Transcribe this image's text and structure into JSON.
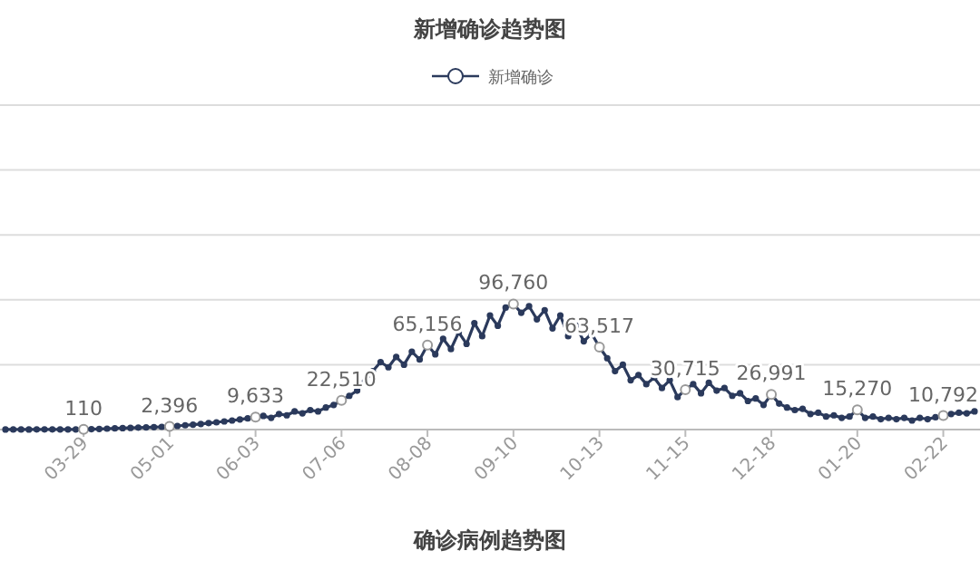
{
  "chart_data": {
    "type": "line",
    "title": "新增确诊趋势图",
    "legend": "top",
    "grid": "y",
    "tick_labels": "x",
    "marker": "circle",
    "line_style": "solid",
    "ylim": [
      0,
      250000
    ],
    "yticks": [
      {
        "value": 0,
        "label": null
      },
      {
        "value": 50000,
        "label": null
      },
      {
        "value": 100000,
        "label": null
      },
      {
        "value": 150000,
        "label": null
      },
      {
        "value": 200000,
        "label": null
      },
      {
        "value": 250000,
        "label": null
      }
    ],
    "categories": [
      null,
      null,
      null,
      null,
      null,
      null,
      null,
      null,
      null,
      null,
      "03-29",
      null,
      null,
      null,
      null,
      null,
      null,
      null,
      null,
      null,
      null,
      "05-01",
      null,
      null,
      null,
      null,
      null,
      null,
      null,
      null,
      null,
      null,
      "06-03",
      null,
      null,
      null,
      null,
      null,
      null,
      null,
      null,
      null,
      null,
      "07-06",
      null,
      null,
      null,
      null,
      null,
      null,
      null,
      null,
      null,
      null,
      "08-08",
      null,
      null,
      null,
      null,
      null,
      null,
      null,
      null,
      null,
      null,
      "09-10",
      null,
      null,
      null,
      null,
      null,
      null,
      null,
      null,
      null,
      null,
      "10-13",
      null,
      null,
      null,
      null,
      null,
      null,
      null,
      null,
      null,
      null,
      "11-15",
      null,
      null,
      null,
      null,
      null,
      null,
      null,
      null,
      null,
      null,
      "12-18",
      null,
      null,
      null,
      null,
      null,
      null,
      null,
      null,
      null,
      null,
      "01-20",
      null,
      null,
      null,
      null,
      null,
      null,
      null,
      null,
      null,
      null,
      "02-22",
      null,
      null,
      null,
      null
    ],
    "series": [
      {
        "name": "新增确诊",
        "color": "#2b3a5c",
        "values": [
          50,
          60,
          70,
          80,
          90,
          100,
          100,
          105,
          110,
          110,
          110,
          300,
          500,
          700,
          900,
          1100,
          1300,
          1500,
          1700,
          1900,
          2100,
          2396,
          2800,
          3300,
          3800,
          4300,
          5000,
          5600,
          6300,
          7000,
          7800,
          8600,
          9633,
          10500,
          9000,
          12000,
          11000,
          14000,
          12500,
          15000,
          14000,
          17000,
          19000,
          22510,
          26000,
          30000,
          37000,
          45000,
          52000,
          48000,
          56000,
          50000,
          60000,
          54000,
          65156,
          58000,
          70000,
          62000,
          75000,
          66000,
          82000,
          72000,
          88000,
          80000,
          94000,
          96760,
          90000,
          95000,
          85000,
          92000,
          78000,
          88000,
          72000,
          80000,
          68000,
          74000,
          63517,
          55000,
          45000,
          50000,
          38000,
          42000,
          35000,
          40000,
          32000,
          38000,
          25000,
          30715,
          35000,
          28000,
          36000,
          30000,
          32000,
          26000,
          28000,
          22000,
          24000,
          19000,
          26991,
          20000,
          17000,
          15000,
          16000,
          12000,
          13000,
          10000,
          11000,
          9000,
          10000,
          15270,
          9000,
          10000,
          8000,
          9000,
          8000,
          9000,
          7000,
          9000,
          8000,
          9500,
          10792,
          12000,
          13000,
          12500,
          14000
        ],
        "value_labels": [
          null,
          null,
          null,
          null,
          null,
          null,
          null,
          null,
          null,
          null,
          "110",
          null,
          null,
          null,
          null,
          null,
          null,
          null,
          null,
          null,
          null,
          "2,396",
          null,
          null,
          null,
          null,
          null,
          null,
          null,
          null,
          null,
          null,
          "9,633",
          null,
          null,
          null,
          null,
          null,
          null,
          null,
          null,
          null,
          null,
          "22,510",
          null,
          null,
          null,
          null,
          null,
          null,
          null,
          null,
          null,
          null,
          "65,156",
          null,
          null,
          null,
          null,
          null,
          null,
          null,
          null,
          null,
          null,
          "96,760",
          null,
          null,
          null,
          null,
          null,
          null,
          null,
          null,
          null,
          null,
          "63,517",
          null,
          null,
          null,
          null,
          null,
          null,
          null,
          null,
          null,
          null,
          "30,715",
          null,
          null,
          null,
          null,
          null,
          null,
          null,
          null,
          null,
          null,
          "26,991",
          null,
          null,
          null,
          null,
          null,
          null,
          null,
          null,
          null,
          null,
          "15,270",
          null,
          null,
          null,
          null,
          null,
          null,
          null,
          null,
          null,
          null,
          "10,792",
          null,
          null,
          null,
          null
        ]
      }
    ],
    "annotations": [
      "确诊病例趋势图"
    ]
  }
}
